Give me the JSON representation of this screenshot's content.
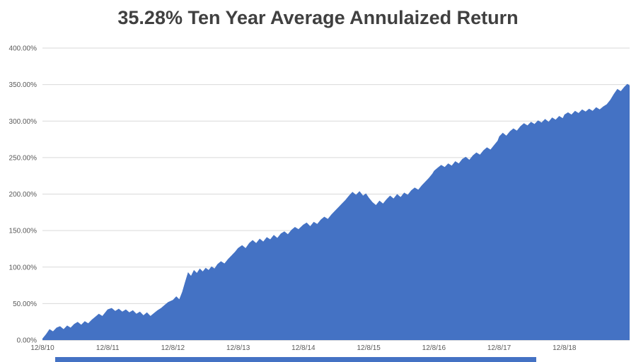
{
  "chart_data": {
    "type": "area",
    "title": "35.28% Ten Year Average Annulaized Return",
    "xlabel": "",
    "ylabel": "",
    "ylim": [
      0,
      400
    ],
    "grid": true,
    "legend_position": "none",
    "y_ticks": [
      {
        "value": 0,
        "label": "0.00%"
      },
      {
        "value": 50,
        "label": "50.00%"
      },
      {
        "value": 100,
        "label": "100.00%"
      },
      {
        "value": 150,
        "label": "150.00%"
      },
      {
        "value": 200,
        "label": "200.00%"
      },
      {
        "value": 250,
        "label": "250.00%"
      },
      {
        "value": 300,
        "label": "300.00%"
      },
      {
        "value": 350,
        "label": "350.00%"
      },
      {
        "value": 400,
        "label": "400.00%"
      }
    ],
    "x_ticks": [
      {
        "pos": 0.0,
        "label": "12/8/10"
      },
      {
        "pos": 0.1111,
        "label": "12/8/11"
      },
      {
        "pos": 0.2222,
        "label": "12/8/12"
      },
      {
        "pos": 0.3333,
        "label": "12/8/13"
      },
      {
        "pos": 0.4444,
        "label": "12/8/14"
      },
      {
        "pos": 0.5556,
        "label": "12/8/15"
      },
      {
        "pos": 0.6667,
        "label": "12/8/16"
      },
      {
        "pos": 0.7778,
        "label": "12/8/17"
      },
      {
        "pos": 0.8889,
        "label": "12/8/18"
      }
    ],
    "series": [
      {
        "color": "#4472C4",
        "points": [
          [
            0,
            2
          ],
          [
            0.006,
            8
          ],
          [
            0.012,
            15
          ],
          [
            0.018,
            12
          ],
          [
            0.024,
            17
          ],
          [
            0.03,
            19
          ],
          [
            0.036,
            15
          ],
          [
            0.042,
            20
          ],
          [
            0.048,
            17
          ],
          [
            0.054,
            22
          ],
          [
            0.06,
            25
          ],
          [
            0.066,
            21
          ],
          [
            0.072,
            26
          ],
          [
            0.078,
            23
          ],
          [
            0.084,
            28
          ],
          [
            0.09,
            32
          ],
          [
            0.096,
            36
          ],
          [
            0.102,
            33
          ],
          [
            0.108,
            39
          ],
          [
            0.111,
            42
          ],
          [
            0.118,
            44
          ],
          [
            0.124,
            40
          ],
          [
            0.13,
            43
          ],
          [
            0.136,
            39
          ],
          [
            0.142,
            42
          ],
          [
            0.148,
            38
          ],
          [
            0.154,
            41
          ],
          [
            0.16,
            36
          ],
          [
            0.166,
            39
          ],
          [
            0.172,
            34
          ],
          [
            0.178,
            38
          ],
          [
            0.184,
            33
          ],
          [
            0.19,
            37
          ],
          [
            0.196,
            41
          ],
          [
            0.202,
            44
          ],
          [
            0.208,
            48
          ],
          [
            0.214,
            52
          ],
          [
            0.222,
            55
          ],
          [
            0.228,
            60
          ],
          [
            0.233,
            56
          ],
          [
            0.238,
            66
          ],
          [
            0.243,
            80
          ],
          [
            0.248,
            93
          ],
          [
            0.253,
            88
          ],
          [
            0.258,
            96
          ],
          [
            0.263,
            92
          ],
          [
            0.268,
            98
          ],
          [
            0.273,
            94
          ],
          [
            0.278,
            99
          ],
          [
            0.283,
            96
          ],
          [
            0.288,
            101
          ],
          [
            0.293,
            98
          ],
          [
            0.298,
            104
          ],
          [
            0.304,
            108
          ],
          [
            0.31,
            105
          ],
          [
            0.316,
            111
          ],
          [
            0.322,
            116
          ],
          [
            0.328,
            121
          ],
          [
            0.333,
            126
          ],
          [
            0.34,
            130
          ],
          [
            0.346,
            126
          ],
          [
            0.352,
            133
          ],
          [
            0.358,
            137
          ],
          [
            0.364,
            133
          ],
          [
            0.37,
            139
          ],
          [
            0.376,
            135
          ],
          [
            0.382,
            141
          ],
          [
            0.388,
            138
          ],
          [
            0.394,
            144
          ],
          [
            0.4,
            140
          ],
          [
            0.406,
            146
          ],
          [
            0.412,
            149
          ],
          [
            0.418,
            145
          ],
          [
            0.424,
            151
          ],
          [
            0.43,
            155
          ],
          [
            0.436,
            152
          ],
          [
            0.444,
            158
          ],
          [
            0.45,
            161
          ],
          [
            0.456,
            156
          ],
          [
            0.462,
            162
          ],
          [
            0.468,
            159
          ],
          [
            0.474,
            165
          ],
          [
            0.48,
            169
          ],
          [
            0.486,
            166
          ],
          [
            0.492,
            172
          ],
          [
            0.498,
            177
          ],
          [
            0.504,
            182
          ],
          [
            0.51,
            187
          ],
          [
            0.516,
            192
          ],
          [
            0.522,
            198
          ],
          [
            0.528,
            203
          ],
          [
            0.534,
            199
          ],
          [
            0.54,
            204
          ],
          [
            0.546,
            198
          ],
          [
            0.551,
            201
          ],
          [
            0.556,
            195
          ],
          [
            0.562,
            189
          ],
          [
            0.568,
            185
          ],
          [
            0.574,
            191
          ],
          [
            0.58,
            187
          ],
          [
            0.586,
            193
          ],
          [
            0.592,
            198
          ],
          [
            0.598,
            194
          ],
          [
            0.604,
            200
          ],
          [
            0.61,
            196
          ],
          [
            0.616,
            202
          ],
          [
            0.622,
            199
          ],
          [
            0.628,
            205
          ],
          [
            0.634,
            209
          ],
          [
            0.64,
            206
          ],
          [
            0.646,
            212
          ],
          [
            0.652,
            217
          ],
          [
            0.658,
            222
          ],
          [
            0.664,
            228
          ],
          [
            0.667,
            232
          ],
          [
            0.673,
            236
          ],
          [
            0.679,
            240
          ],
          [
            0.685,
            237
          ],
          [
            0.691,
            242
          ],
          [
            0.697,
            239
          ],
          [
            0.703,
            245
          ],
          [
            0.709,
            242
          ],
          [
            0.715,
            248
          ],
          [
            0.721,
            251
          ],
          [
            0.727,
            247
          ],
          [
            0.733,
            253
          ],
          [
            0.739,
            257
          ],
          [
            0.745,
            254
          ],
          [
            0.751,
            260
          ],
          [
            0.757,
            264
          ],
          [
            0.763,
            261
          ],
          [
            0.769,
            267
          ],
          [
            0.775,
            273
          ],
          [
            0.778,
            279
          ],
          [
            0.784,
            284
          ],
          [
            0.79,
            280
          ],
          [
            0.796,
            286
          ],
          [
            0.802,
            290
          ],
          [
            0.808,
            287
          ],
          [
            0.814,
            293
          ],
          [
            0.82,
            297
          ],
          [
            0.826,
            294
          ],
          [
            0.832,
            299
          ],
          [
            0.838,
            296
          ],
          [
            0.844,
            301
          ],
          [
            0.85,
            298
          ],
          [
            0.856,
            303
          ],
          [
            0.862,
            299
          ],
          [
            0.868,
            305
          ],
          [
            0.874,
            302
          ],
          [
            0.88,
            307
          ],
          [
            0.886,
            304
          ],
          [
            0.889,
            309
          ],
          [
            0.895,
            312
          ],
          [
            0.901,
            309
          ],
          [
            0.907,
            314
          ],
          [
            0.913,
            311
          ],
          [
            0.919,
            316
          ],
          [
            0.925,
            313
          ],
          [
            0.931,
            317
          ],
          [
            0.937,
            314
          ],
          [
            0.943,
            319
          ],
          [
            0.949,
            316
          ],
          [
            0.955,
            320
          ],
          [
            0.961,
            323
          ],
          [
            0.967,
            329
          ],
          [
            0.973,
            337
          ],
          [
            0.979,
            344
          ],
          [
            0.985,
            341
          ],
          [
            0.991,
            347
          ],
          [
            0.996,
            351
          ],
          [
            1,
            349
          ]
        ]
      }
    ]
  },
  "colors": {
    "area_fill": "#4472C4",
    "gridline": "#d9d9d9",
    "axis_line": "#bfbfbf",
    "tick_text": "#595959",
    "title_text": "#404040",
    "bottom_bar": "#4472C4",
    "background": "#ffffff"
  },
  "bottom_bar": {
    "visible": true
  }
}
